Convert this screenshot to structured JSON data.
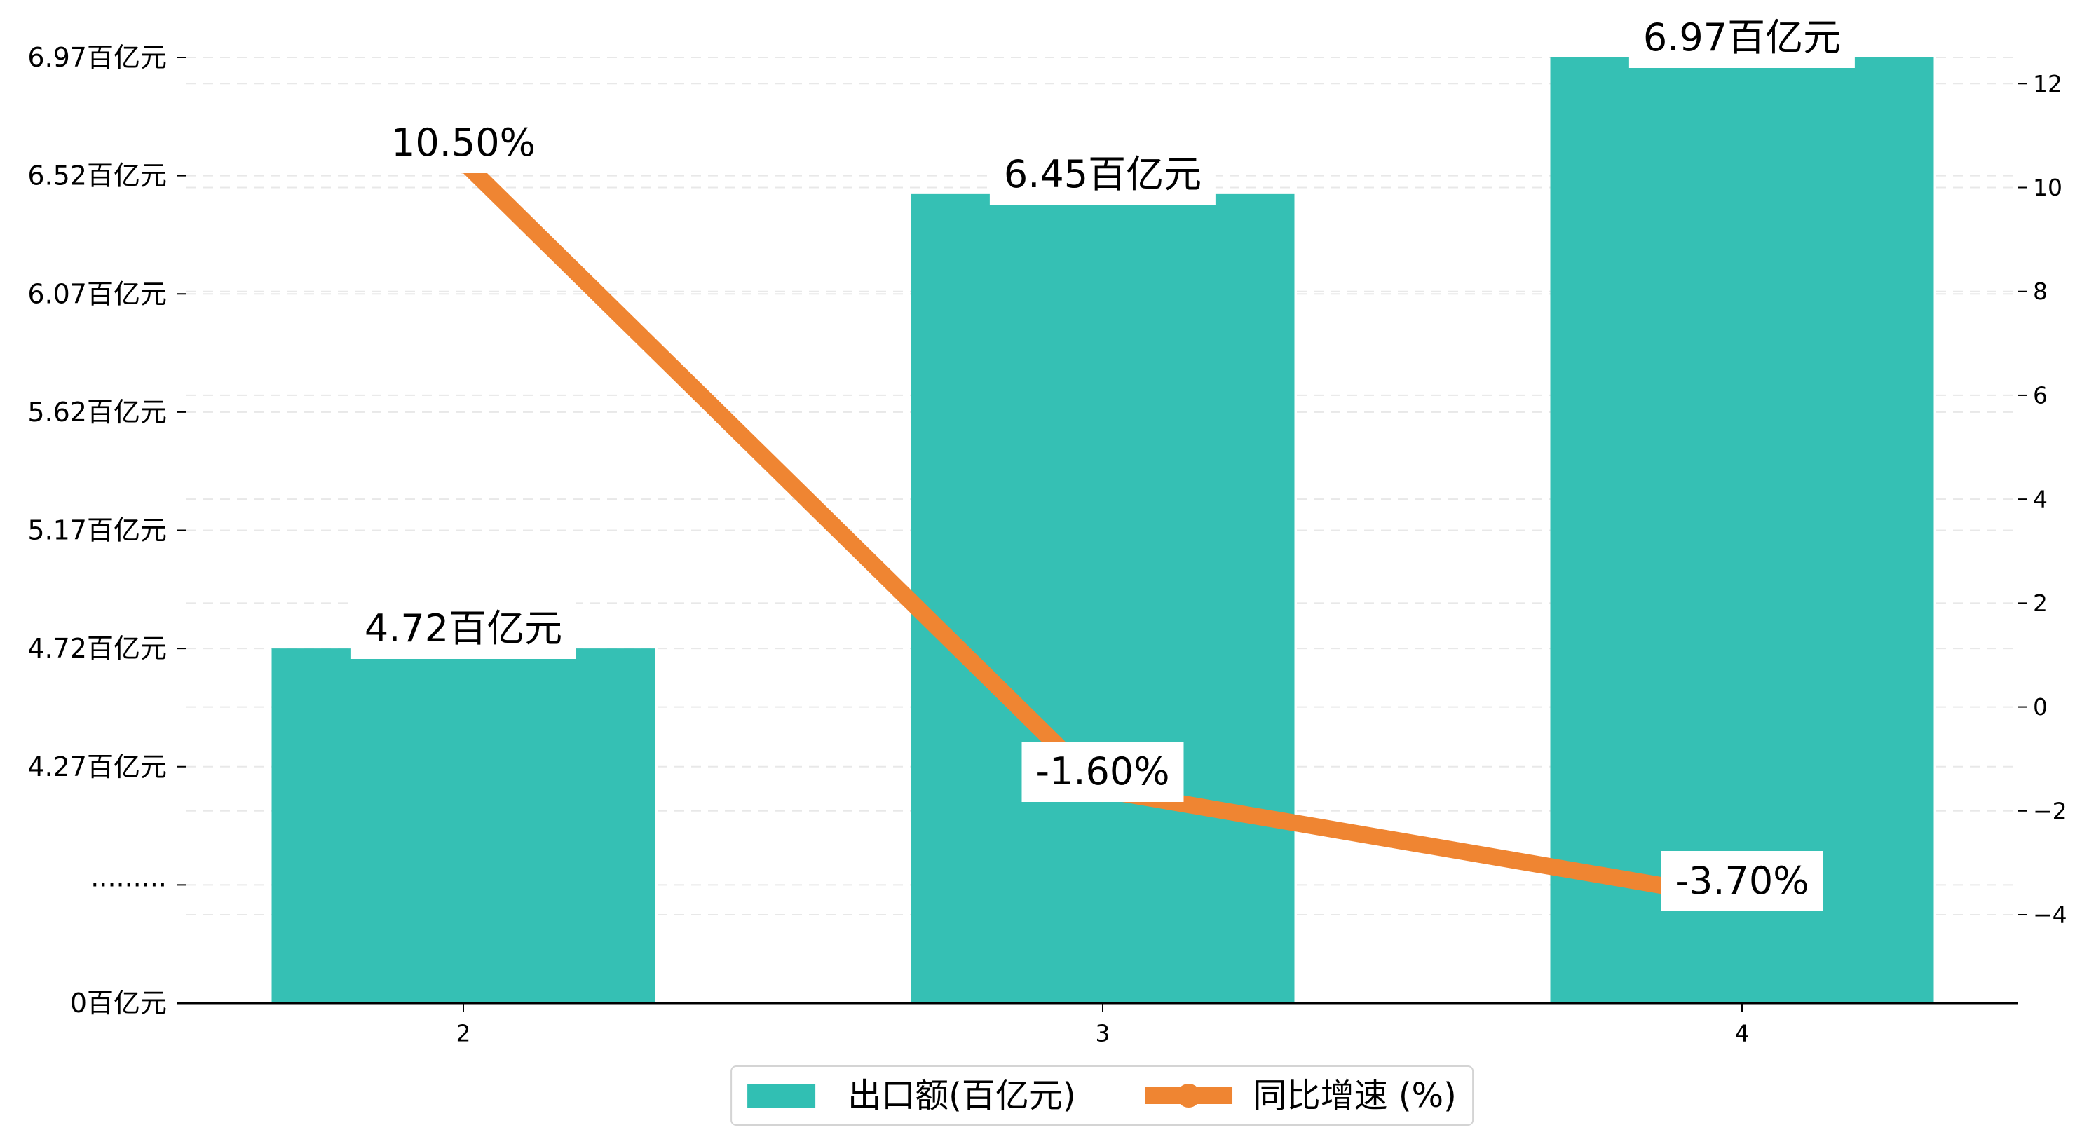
{
  "chart_data": {
    "type": "bar",
    "categories": [
      "2",
      "3",
      "4"
    ],
    "series": [
      {
        "name": "出口额(百亿元)",
        "type": "bar",
        "values": [
          4.72,
          6.45,
          6.97
        ],
        "labels": [
          "4.72百亿元",
          "6.45百亿元",
          "6.97百亿元"
        ],
        "color": "#31bfb3"
      },
      {
        "name": "同比增速 (%)",
        "type": "line",
        "values": [
          10.5,
          -1.6,
          -3.7
        ],
        "labels": [
          "10.50%",
          "-1.60%",
          "-3.70%"
        ],
        "color": "#ef8532",
        "marker": "circle"
      }
    ],
    "y_left": {
      "tick_labels": [
        "0百亿元",
        "·········",
        "4.27百亿元",
        "4.72百亿元",
        "5.17百亿元",
        "5.62百亿元",
        "6.07百亿元",
        "6.52百亿元",
        "6.97百亿元"
      ],
      "tick_values": [
        0,
        null,
        4.27,
        4.72,
        5.17,
        5.62,
        6.07,
        6.52,
        6.97
      ],
      "axis_break": true
    },
    "y_right": {
      "ticks": [
        -4,
        -2,
        0,
        2,
        4,
        6,
        8,
        10,
        12
      ],
      "tick_labels": [
        "−4",
        "−2",
        "0",
        "2",
        "4",
        "6",
        "8",
        "10",
        "12"
      ],
      "ylim": [
        -5.7,
        12.8
      ]
    },
    "grid": true,
    "legend": "bottom-center"
  }
}
